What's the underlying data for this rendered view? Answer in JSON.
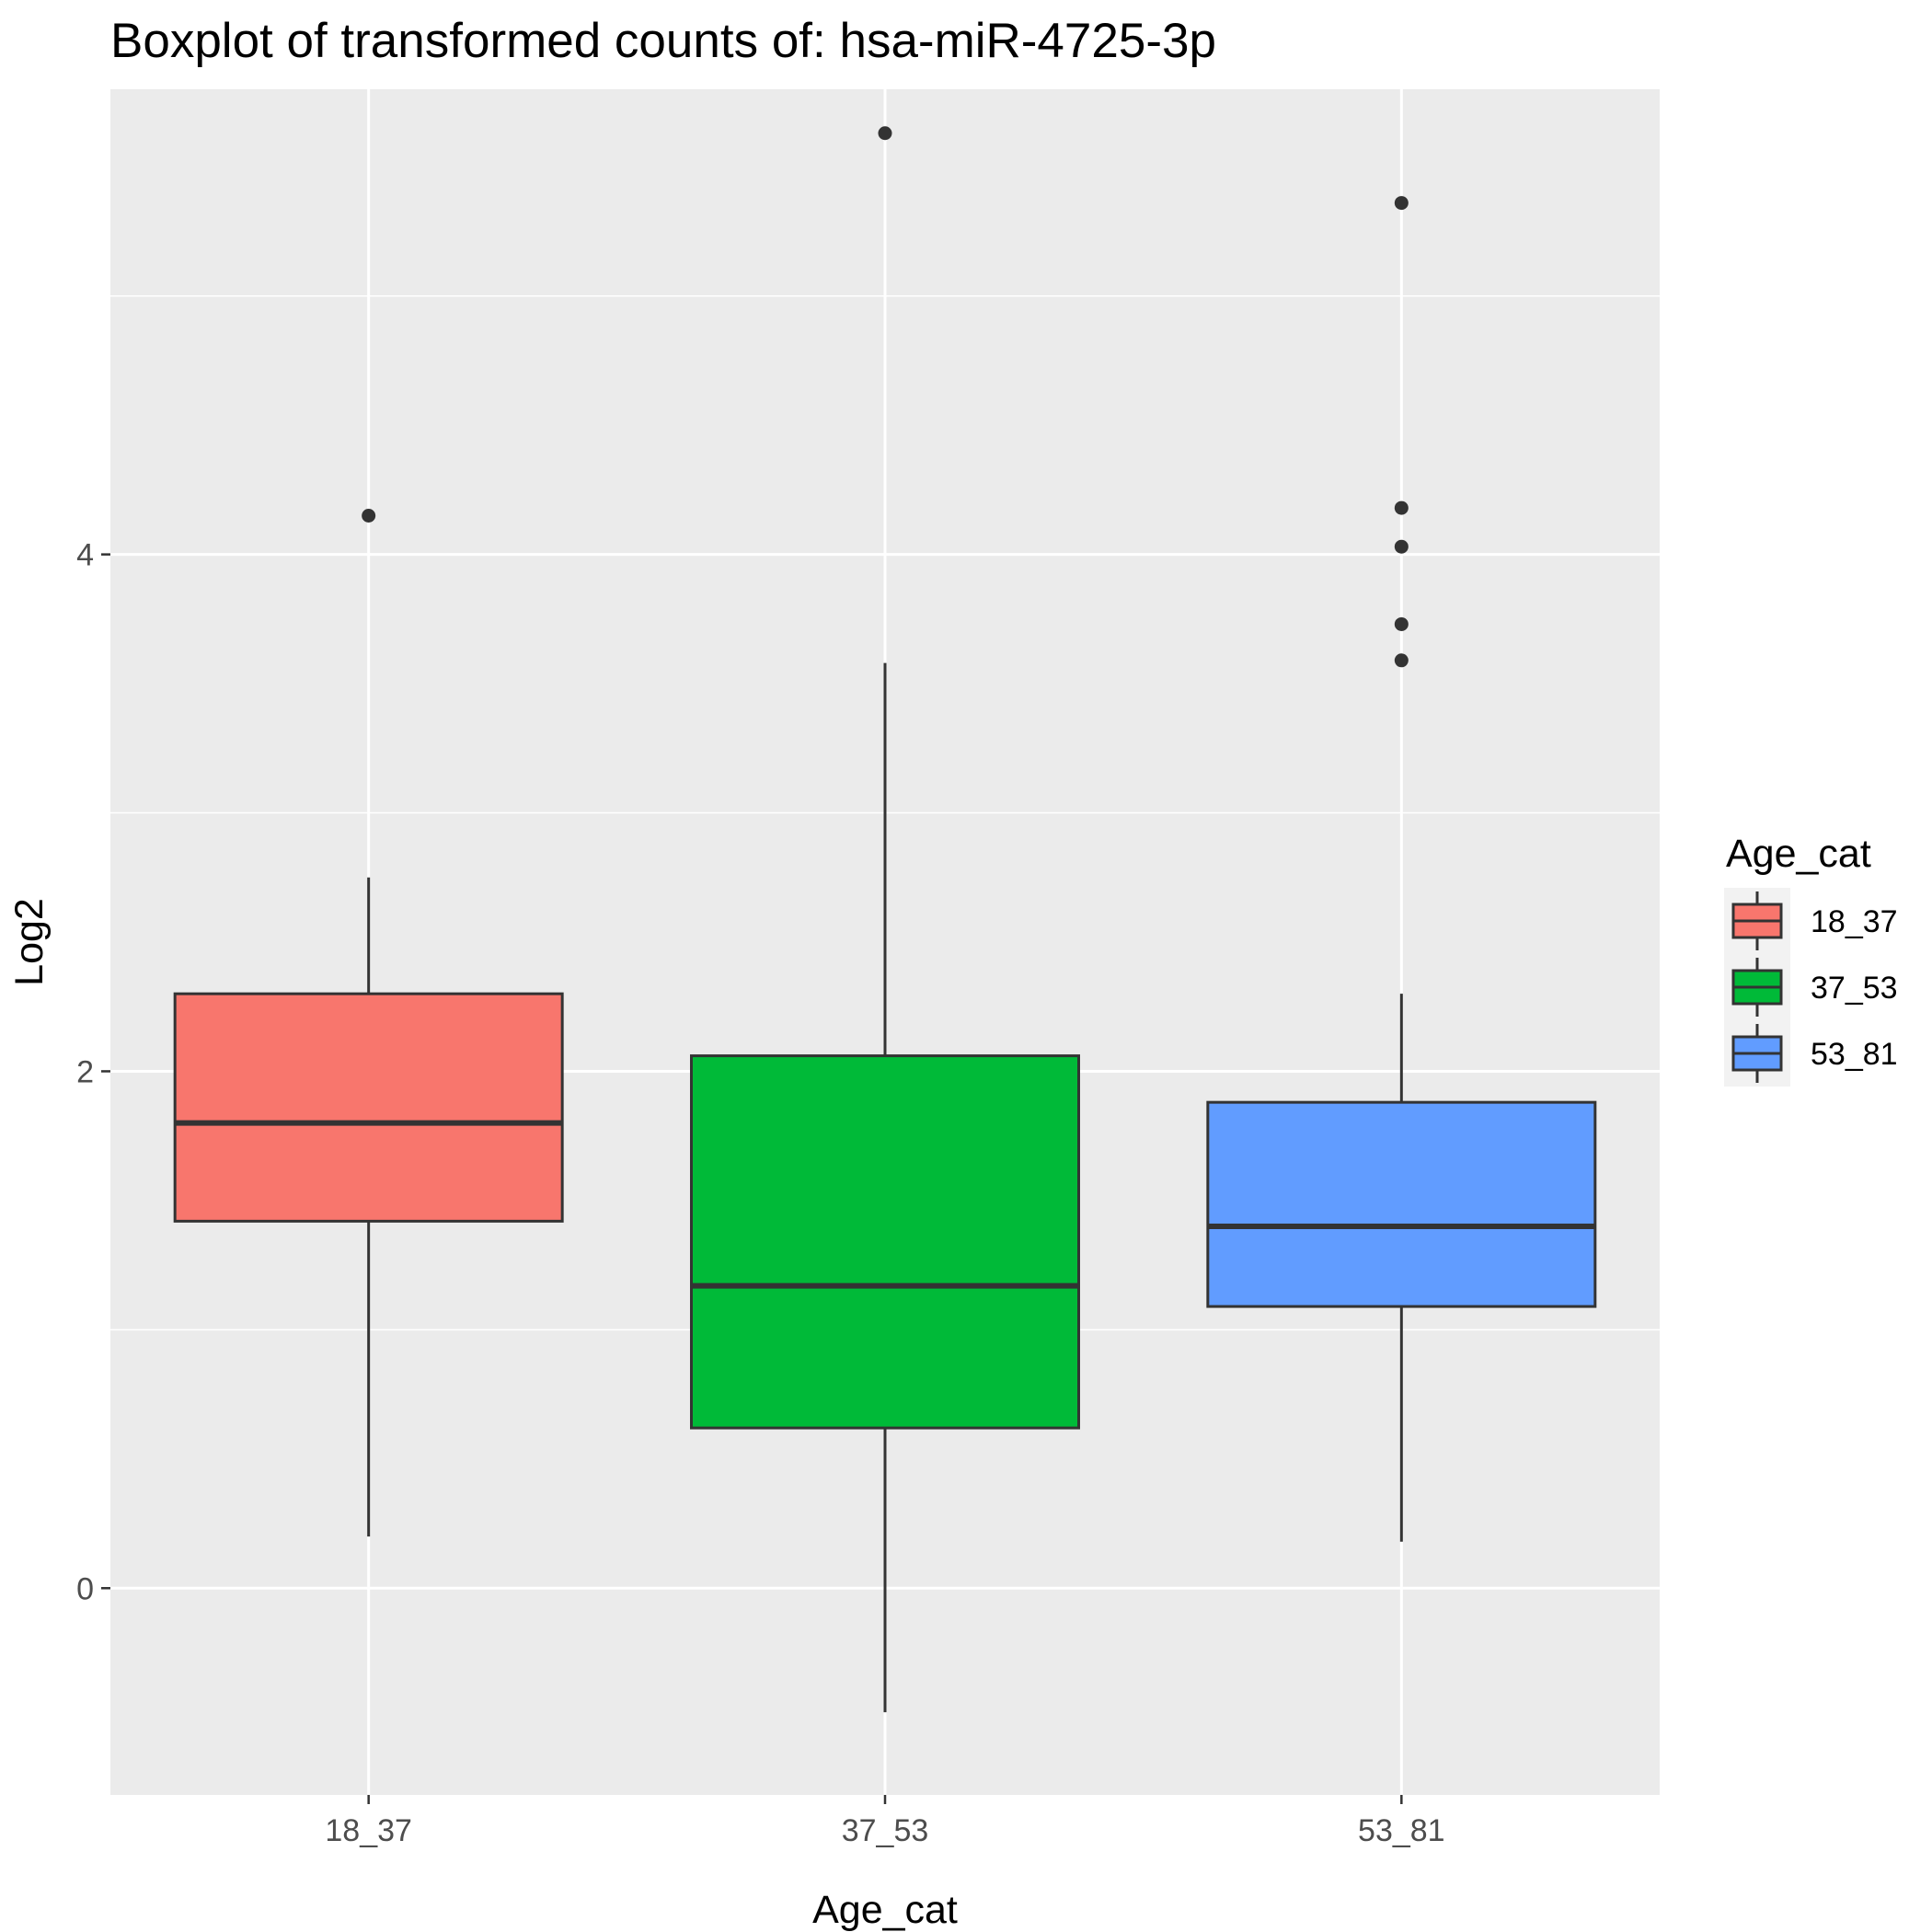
{
  "chart_data": {
    "type": "boxplot",
    "title": "Boxplot of transformed counts of: hsa-miR-4725-3p",
    "xlabel": "Age_cat",
    "ylabel": "Log2",
    "ylim": [
      -0.8,
      5.8
    ],
    "yticks": [
      0,
      2,
      4
    ],
    "grid": true,
    "legend": {
      "title": "Age_cat",
      "placement": "right",
      "entries": [
        "18_37",
        "37_53",
        "53_81"
      ]
    },
    "categories": [
      "18_37",
      "37_53",
      "53_81"
    ],
    "colors": [
      "#F8766D",
      "#00BA38",
      "#619CFF"
    ],
    "boxes": [
      {
        "category": "18_37",
        "whisker_low": 0.2,
        "q1": 1.42,
        "median": 1.8,
        "q3": 2.3,
        "whisker_high": 2.75,
        "outliers": [
          4.15
        ]
      },
      {
        "category": "37_53",
        "whisker_low": -0.48,
        "q1": 0.62,
        "median": 1.17,
        "q3": 2.06,
        "whisker_high": 3.58,
        "outliers": [
          5.63
        ]
      },
      {
        "category": "53_81",
        "whisker_low": 0.18,
        "q1": 1.09,
        "median": 1.4,
        "q3": 1.88,
        "whisker_high": 2.3,
        "outliers": [
          5.36,
          4.18,
          4.03,
          3.73,
          3.59
        ]
      }
    ]
  }
}
